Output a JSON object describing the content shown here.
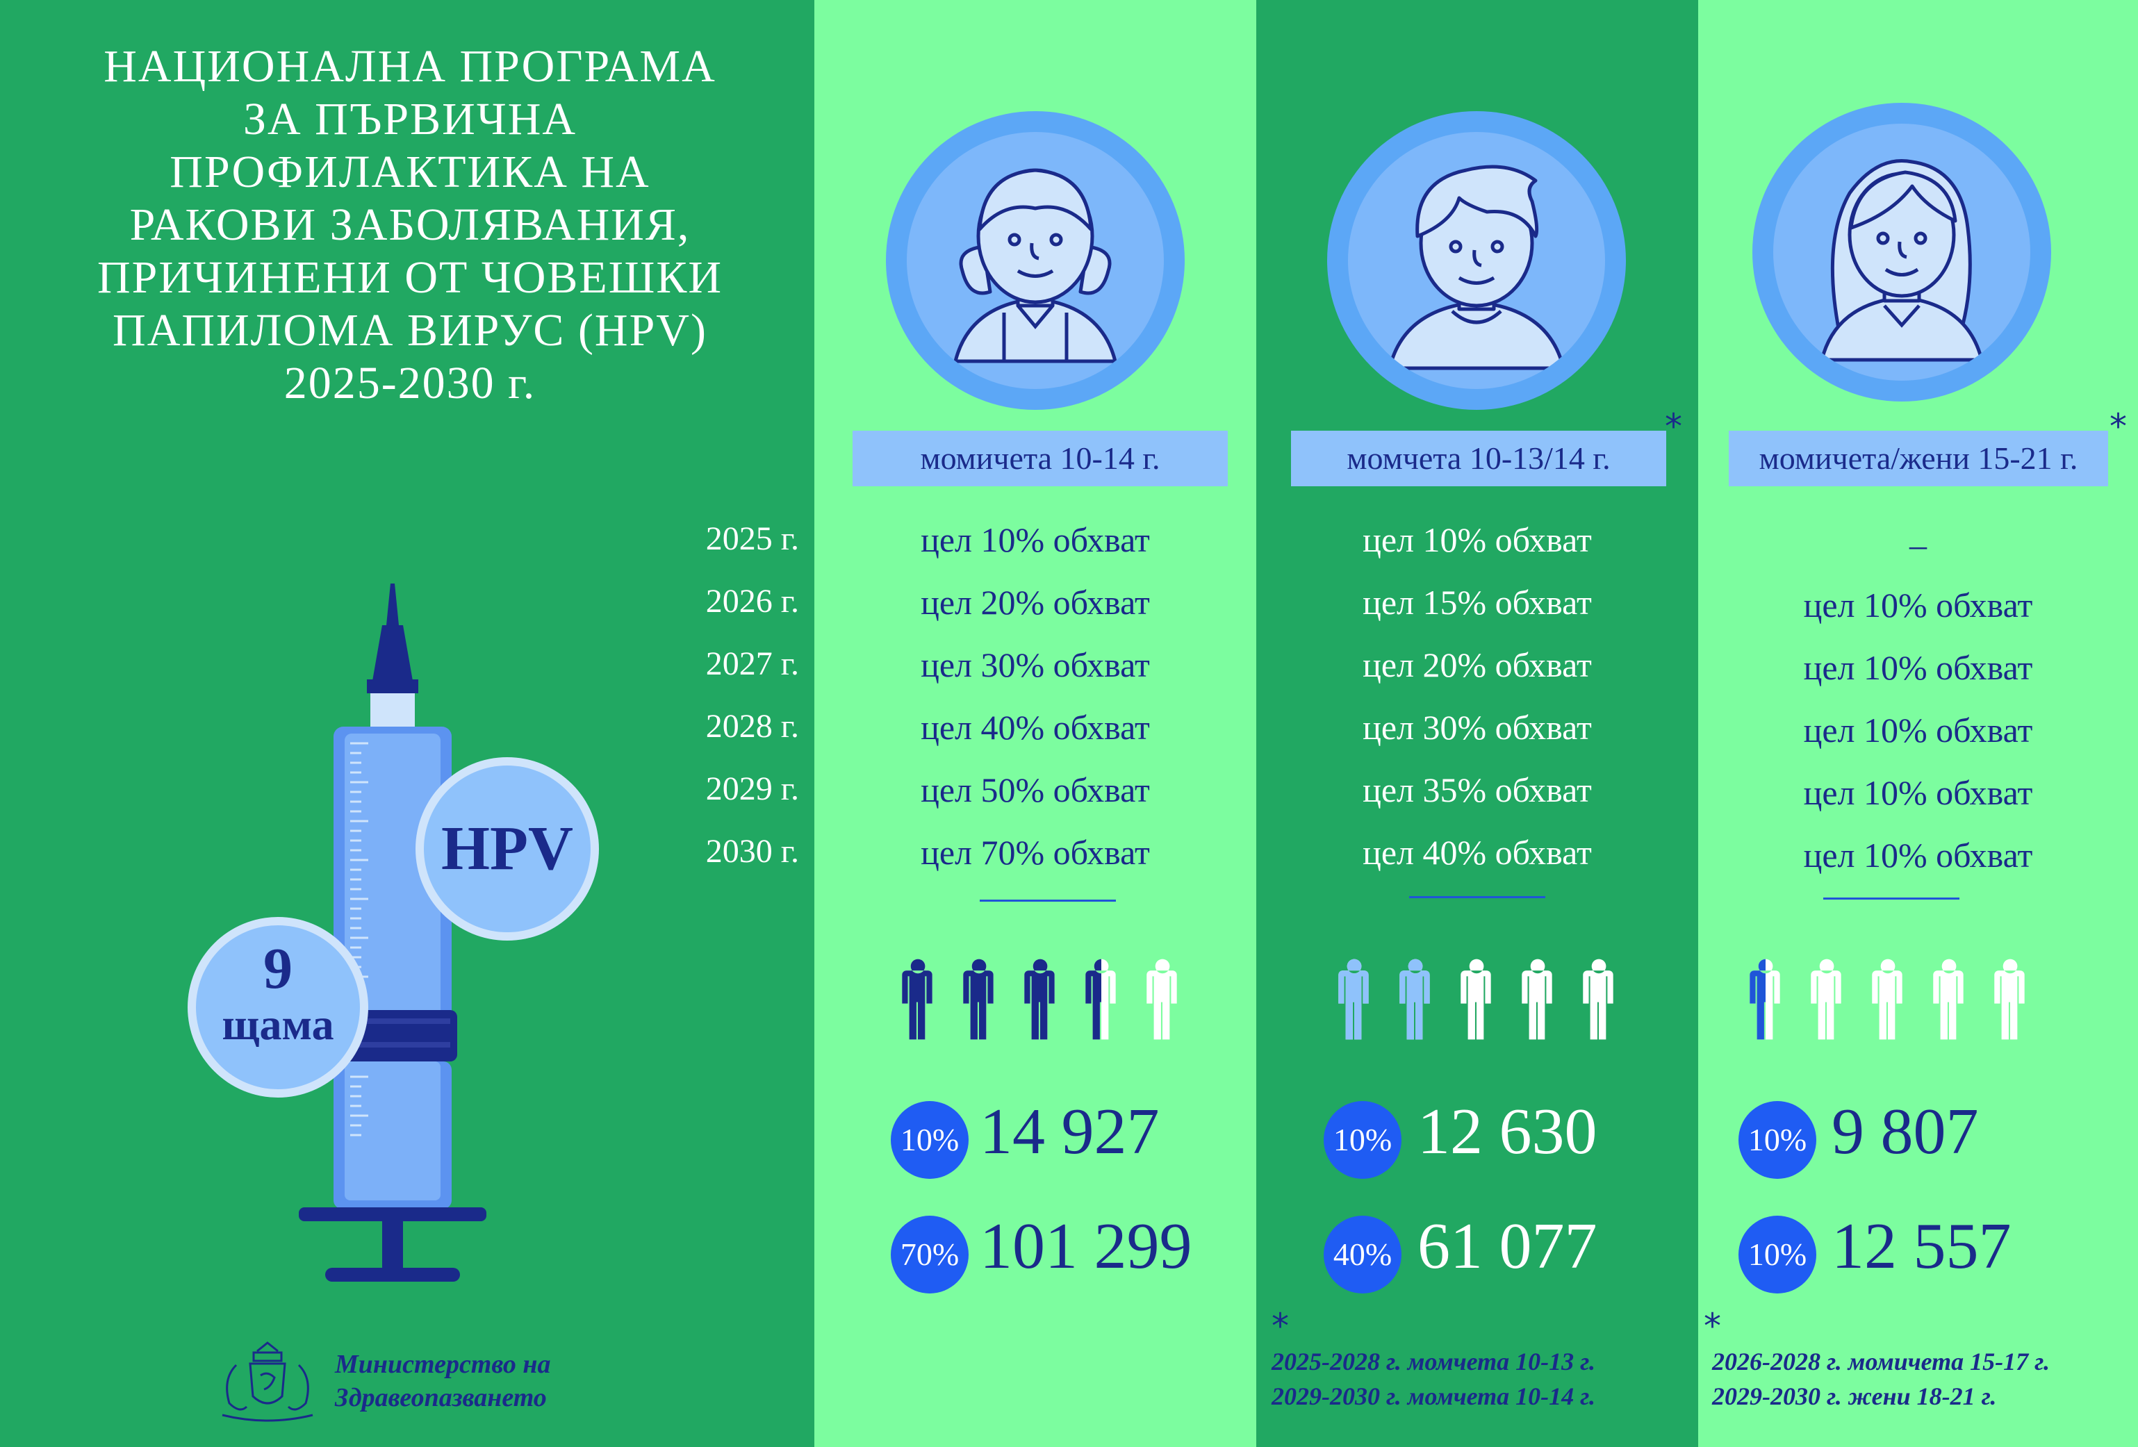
{
  "title_lines": [
    "НАЦИОНАЛНА ПРОГРАМА",
    "ЗА ПЪРВИЧНА",
    "ПРОФИЛАКТИКА НА",
    "РАКОВИ ЗАБОЛЯВАНИЯ,",
    "ПРИЧИНЕНИ ОТ ЧОВЕШКИ",
    "ПАПИЛОМА ВИРУС (HPV)",
    "2025-2030 г."
  ],
  "years": [
    "2025 г.",
    "2026 г.",
    "2027 г.",
    "2028 г.",
    "2029 г.",
    "2030 г."
  ],
  "syringe": {
    "badge_text": "HPV",
    "strains_number": "9",
    "strains_label": "щама"
  },
  "groups": [
    {
      "label": "момичета 10-14 г.",
      "star": "",
      "goals": [
        "цел 10% обхват",
        "цел 20% обхват",
        "цел 30% обхват",
        "цел 40% обхват",
        "цел 50% обхват",
        "цел 70% обхват"
      ],
      "people_filled_fraction": 0.7,
      "pct1": "10%",
      "count1": "14 927",
      "pct2": "70%",
      "count2": "101 299",
      "note_star": "",
      "note_lines": []
    },
    {
      "label": "момчета 10-13/14 г.",
      "star": "*",
      "goals": [
        "цел 10% обхват",
        "цел 15% обхват",
        "цел 20% обхват",
        "цел 30% обхват",
        "цел 35% обхват",
        "цел 40% обхват"
      ],
      "people_filled_fraction": 0.4,
      "pct1": "10%",
      "count1": "12 630",
      "pct2": "40%",
      "count2": "61 077",
      "note_star": "*",
      "note_lines": [
        "2025-2028 г. момчета 10-13 г.",
        "2029-2030 г. момчета 10-14 г."
      ]
    },
    {
      "label": "момичета/жени 15-21 г.",
      "star": "*",
      "goals": [
        "–",
        "цел 10% обхват",
        "цел 10% обхват",
        "цел 10% обхват",
        "цел 10% обхват",
        "цел 10% обхват"
      ],
      "people_filled_fraction": 0.1,
      "pct1": "10%",
      "count1": "9 807",
      "pct2": "10%",
      "count2": "12 557",
      "note_star": "*",
      "note_lines": [
        "2026-2028 г. момичета 15-17 г.",
        "2029-2030 г. жени 18-21 г."
      ]
    }
  ],
  "ministry": {
    "line1": "Министерство на",
    "line2": "Здравеопазването"
  },
  "colors": {
    "dark_green": "#21a862",
    "light_green": "#7cfd9f",
    "navy": "#1a2a8a",
    "blue": "#1f5cf3"
  }
}
